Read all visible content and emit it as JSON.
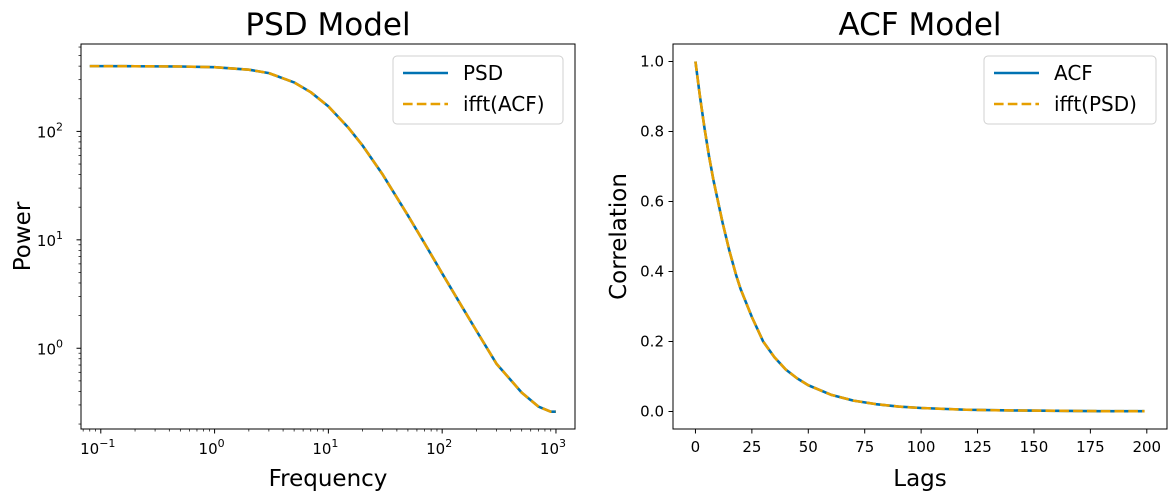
{
  "chart_data": [
    {
      "type": "line",
      "title": "PSD Model",
      "xlabel": "Frequency",
      "ylabel": "Power",
      "xscale": "log",
      "yscale": "log",
      "xlim": [
        0.067,
        1470
      ],
      "ylim": [
        0.18,
        640
      ],
      "xticks": [
        {
          "value": 0.1,
          "base": "10",
          "exp": "−1"
        },
        {
          "value": 1,
          "base": "10",
          "exp": "0"
        },
        {
          "value": 10,
          "base": "10",
          "exp": "1"
        },
        {
          "value": 100,
          "base": "10",
          "exp": "2"
        },
        {
          "value": 1000,
          "base": "10",
          "exp": "3"
        }
      ],
      "yticks": [
        {
          "value": 1,
          "base": "10",
          "exp": "0"
        },
        {
          "value": 10,
          "base": "10",
          "exp": "1"
        },
        {
          "value": 100,
          "base": "10",
          "exp": "2"
        }
      ],
      "grid": false,
      "legend_position": "top-right",
      "series": [
        {
          "name": "PSD",
          "color": "#0072b2",
          "style": "solid",
          "x": [
            0.08,
            0.1,
            0.2,
            0.5,
            1,
            2,
            3,
            5,
            7,
            10,
            15,
            20,
            30,
            50,
            70,
            100,
            150,
            200,
            300,
            500,
            700,
            900,
            1000
          ],
          "y": [
            400,
            400,
            399,
            397,
            391,
            371,
            345,
            283,
            230,
            170,
            108,
            74,
            40,
            16.8,
            9.3,
            4.9,
            2.4,
            1.45,
            0.72,
            0.39,
            0.29,
            0.26,
            0.26
          ]
        },
        {
          "name": "ifft(ACF)",
          "color": "#e69f00",
          "style": "dashed",
          "x": [
            0.08,
            0.1,
            0.2,
            0.5,
            1,
            2,
            3,
            5,
            7,
            10,
            15,
            20,
            30,
            50,
            70,
            100,
            150,
            200,
            300,
            500,
            700,
            900,
            1000
          ],
          "y": [
            400,
            400,
            399,
            397,
            391,
            371,
            345,
            283,
            230,
            170,
            108,
            74,
            40,
            16.8,
            9.3,
            4.9,
            2.4,
            1.45,
            0.72,
            0.39,
            0.29,
            0.26,
            0.26
          ]
        }
      ]
    },
    {
      "type": "line",
      "title": "ACF Model",
      "xlabel": "Lags",
      "ylabel": "Correlation",
      "xscale": "linear",
      "yscale": "linear",
      "xlim": [
        -9.95,
        208.95
      ],
      "ylim": [
        -0.05,
        1.05
      ],
      "xticks": [
        {
          "value": 0,
          "label": "0"
        },
        {
          "value": 25,
          "label": "25"
        },
        {
          "value": 50,
          "label": "50"
        },
        {
          "value": 75,
          "label": "75"
        },
        {
          "value": 100,
          "label": "100"
        },
        {
          "value": 125,
          "label": "125"
        },
        {
          "value": 150,
          "label": "150"
        },
        {
          "value": 175,
          "label": "175"
        },
        {
          "value": 200,
          "label": "200"
        }
      ],
      "yticks": [
        {
          "value": 0.0,
          "label": "0.0"
        },
        {
          "value": 0.2,
          "label": "0.2"
        },
        {
          "value": 0.4,
          "label": "0.4"
        },
        {
          "value": 0.6,
          "label": "0.6"
        },
        {
          "value": 0.8,
          "label": "0.8"
        },
        {
          "value": 1.0,
          "label": "1.0"
        }
      ],
      "grid": false,
      "legend_position": "top-right",
      "series": [
        {
          "name": "ACF",
          "color": "#0072b2",
          "style": "solid",
          "x": [
            0,
            2,
            4,
            6,
            8,
            10,
            12,
            15,
            18,
            20,
            25,
            30,
            35,
            40,
            45,
            50,
            60,
            70,
            80,
            90,
            100,
            120,
            140,
            160,
            180,
            199
          ],
          "y": [
            1.0,
            0.9,
            0.81,
            0.73,
            0.66,
            0.6,
            0.54,
            0.46,
            0.39,
            0.35,
            0.27,
            0.2,
            0.155,
            0.12,
            0.095,
            0.075,
            0.048,
            0.031,
            0.021,
            0.014,
            0.01,
            0.005,
            0.003,
            0.002,
            0.001,
            0.001
          ]
        },
        {
          "name": "ifft(PSD)",
          "color": "#e69f00",
          "style": "dashed",
          "x": [
            0,
            2,
            4,
            6,
            8,
            10,
            12,
            15,
            18,
            20,
            25,
            30,
            35,
            40,
            45,
            50,
            60,
            70,
            80,
            90,
            100,
            120,
            140,
            160,
            180,
            199
          ],
          "y": [
            1.0,
            0.9,
            0.81,
            0.73,
            0.66,
            0.6,
            0.54,
            0.46,
            0.39,
            0.35,
            0.27,
            0.2,
            0.155,
            0.12,
            0.095,
            0.075,
            0.048,
            0.031,
            0.021,
            0.014,
            0.01,
            0.005,
            0.003,
            0.002,
            0.001,
            0.001
          ]
        }
      ]
    }
  ]
}
